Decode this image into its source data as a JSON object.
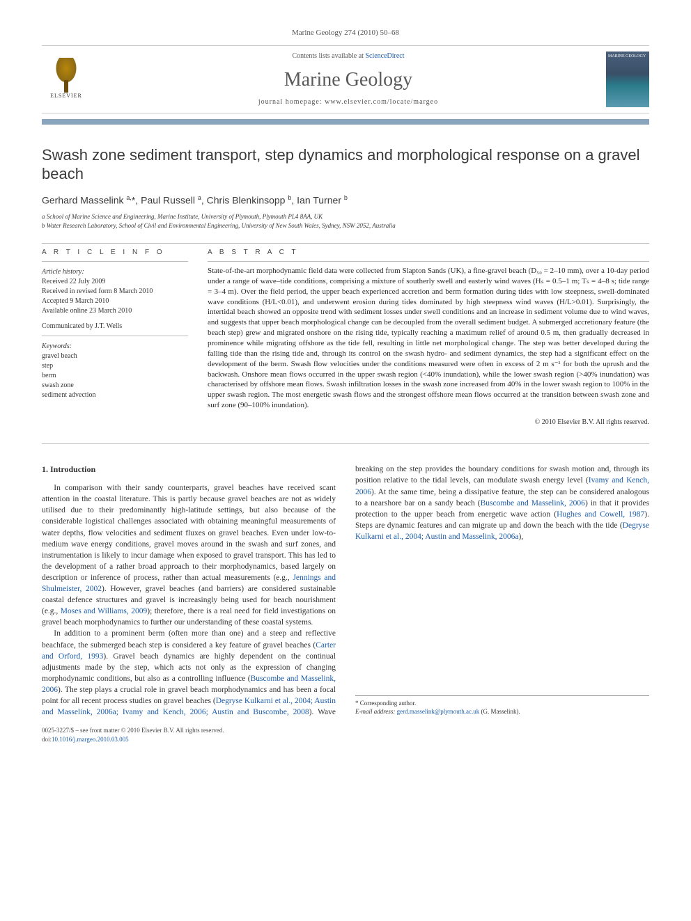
{
  "page_background": "#ffffff",
  "text_color": "#333333",
  "link_color": "#1a5ba8",
  "accent_color": "#88a5bd",
  "header": {
    "journal_ref": "Marine Geology 274 (2010) 50–68",
    "contents_line_prefix": "Contents lists available at ",
    "contents_link": "ScienceDirect",
    "journal_name": "Marine Geology",
    "homepage_prefix": "journal homepage: ",
    "homepage_url": "www.elsevier.com/locate/margeo",
    "elsevier_label": "ELSEVIER",
    "cover_title": "MARINE GEOLOGY"
  },
  "title": "Swash zone sediment transport, step dynamics and morphological response on a gravel beach",
  "authors_html": "Gerhard Masselink <sup>a,</sup>*, Paul Russell <sup>a</sup>, Chris Blenkinsopp <sup>b</sup>, Ian Turner <sup>b</sup>",
  "affiliations": {
    "a": "a School of Marine Science and Engineering, Marine Institute, University of Plymouth, Plymouth PL4 8AA, UK",
    "b": "b Water Research Laboratory, School of Civil and Environmental Engineering, University of New South Wales, Sydney, NSW 2052, Australia"
  },
  "article_info": {
    "head": "A R T I C L E  I N F O",
    "history_label": "Article history:",
    "received": "Received 22 July 2009",
    "revised": "Received in revised form 8 March 2010",
    "accepted": "Accepted 9 March 2010",
    "online": "Available online 23 March 2010",
    "communicated": "Communicated by J.T. Wells",
    "keywords_label": "Keywords:",
    "keywords": [
      "gravel beach",
      "step",
      "berm",
      "swash zone",
      "sediment advection"
    ]
  },
  "abstract": {
    "head": "A B S T R A C T",
    "text": "State-of-the-art morphodynamic field data were collected from Slapton Sands (UK), a fine-gravel beach (D₅₀ = 2–10 mm), over a 10-day period under a range of wave–tide conditions, comprising a mixture of southerly swell and easterly wind waves (Hₛ = 0.5–1 m; Tₛ = 4–8 s; tide range = 3–4 m). Over the field period, the upper beach experienced accretion and berm formation during tides with low steepness, swell-dominated wave conditions (H/L<0.01), and underwent erosion during tides dominated by high steepness wind waves (H/L>0.01). Surprisingly, the intertidal beach showed an opposite trend with sediment losses under swell conditions and an increase in sediment volume due to wind waves, and suggests that upper beach morphological change can be decoupled from the overall sediment budget. A submerged accretionary feature (the beach step) grew and migrated onshore on the rising tide, typically reaching a maximum relief of around 0.5 m, then gradually decreased in prominence while migrating offshore as the tide fell, resulting in little net morphological change. The step was better developed during the falling tide than the rising tide and, through its control on the swash hydro- and sediment dynamics, the step had a significant effect on the development of the berm. Swash flow velocities under the conditions measured were often in excess of 2 m s⁻¹ for both the uprush and the backwash. Onshore mean flows occurred in the upper swash region (<40% inundation), while the lower swash region (>40% inundation) was characterised by offshore mean flows. Swash infiltration losses in the swash zone increased from 40% in the lower swash region to 100% in the upper swash region. The most energetic swash flows and the strongest offshore mean flows occurred at the transition between swash zone and surf zone (90–100% inundation).",
    "rights": "© 2010 Elsevier B.V. All rights reserved."
  },
  "body": {
    "section_head": "1. Introduction",
    "col1_p1": "In comparison with their sandy counterparts, gravel beaches have received scant attention in the coastal literature. This is partly because gravel beaches are not as widely utilised due to their predominantly high-latitude settings, but also because of the considerable logistical challenges associated with obtaining meaningful measurements of water depths, flow velocities and sediment fluxes on gravel beaches. Even under low-to-medium wave energy conditions, gravel moves around in the swash and surf zones, and instrumentation is likely to incur damage when exposed to gravel transport. This has led to the development of a rather broad approach to their morphodynamics, based largely on description or inference of process, rather than actual measurements (e.g., ",
    "ref1": "Jennings and Shulmeister, 2002",
    "col1_p1b": "). However, gravel beaches (and barriers) are considered sustainable coastal defence structures and gravel is increasingly being used for beach nourishment (e.g., ",
    "ref2": "Moses and Williams, 2009",
    "col1_p1c": "); therefore, there is a",
    "col2_p1": "real need for field investigations on gravel beach morphodynamics to further our understanding of these coastal systems.",
    "col2_p2a": "In addition to a prominent berm (often more than one) and a steep and reflective beachface, the submerged beach step is considered a key feature of gravel beaches (",
    "ref3": "Carter and Orford, 1993",
    "col2_p2b": "). Gravel beach dynamics are highly dependent on the continual adjustments made by the step, which acts not only as the expression of changing morphodynamic conditions, but also as a controlling influence (",
    "ref4": "Buscombe and Masselink, 2006",
    "col2_p2c": "). The step plays a crucial role in gravel beach morphodynamics and has been a focal point for all recent process studies on gravel beaches (",
    "ref5": "Degryse Kulkarni et al., 2004; Austin and Masselink, 2006a; Ivamy and Kench, 2006; Austin and Buscombe, 2008",
    "col2_p2d": "). Wave breaking on the step provides the boundary conditions for swash motion and, through its position relative to the tidal levels, can modulate swash energy level (",
    "ref6": "Ivamy and Kench, 2006",
    "col2_p2e": "). At the same time, being a dissipative feature, the step can be considered analogous to a nearshore bar on a sandy beach (",
    "ref7": "Buscombe and Masselink, 2006",
    "col2_p2f": ") in that it provides protection to the upper beach from energetic wave action (",
    "ref8": "Hughes and Cowell, 1987",
    "col2_p2g": "). Steps are dynamic features and can migrate up and down the beach with the tide (",
    "ref9": "Degryse Kulkarni et al., 2004; Austin and Masselink, 2006a",
    "col2_p2h": "),"
  },
  "footnote": {
    "corr": "* Corresponding author.",
    "email_label": "E-mail address: ",
    "email": "gerd.masselink@plymouth.ac.uk",
    "email_suffix": " (G. Masselink)."
  },
  "bottom": {
    "issn": "0025-3227/$ – see front matter © 2010 Elsevier B.V. All rights reserved.",
    "doi_label": "doi:",
    "doi": "10.1016/j.margeo.2010.03.005"
  }
}
